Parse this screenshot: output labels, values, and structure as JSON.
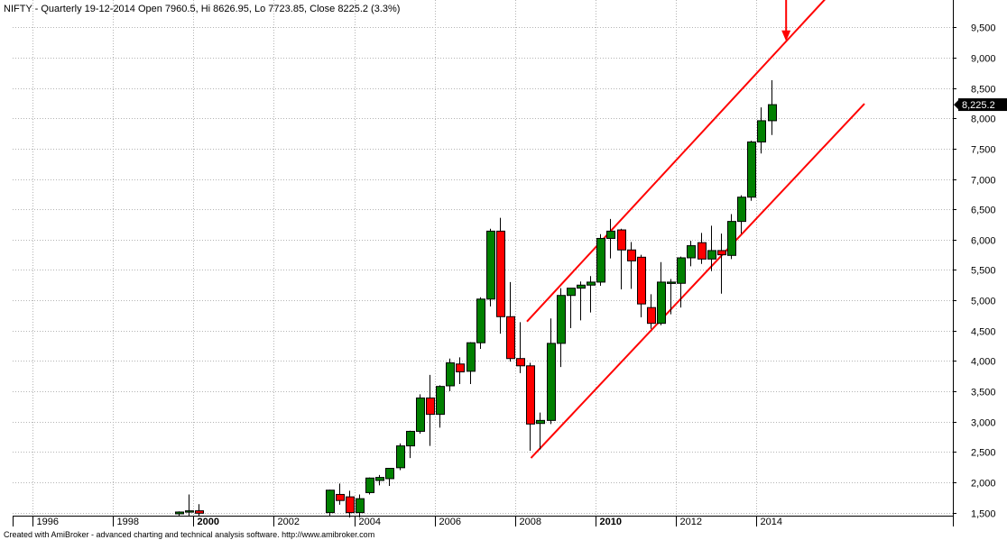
{
  "header": {
    "title": "NIFTY - Quarterly 19-12-2014 Open 7960.5, Hi 8626.95, Lo 7723.85, Close 8225.2 (3.3%)"
  },
  "footer": {
    "text": "Created with AmiBroker - advanced charting and technical analysis software. http://www.amibroker.com"
  },
  "colors": {
    "up": "#008000",
    "down": "#ff0000",
    "channel": "#ff0000",
    "grid": "#b4b4b4",
    "badge": "#000000"
  },
  "chart_data": {
    "type": "candlestick",
    "title": "NIFTY - Quarterly 19-12-2014 Open 7960.5, Hi 8626.95, Lo 7723.85, Close 8225.2 (3.3%)",
    "ylim": [
      1450,
      9950
    ],
    "y_ticks": [
      "1,500",
      "2,000",
      "2,500",
      "3,000",
      "3,500",
      "4,000",
      "4,500",
      "5,000",
      "5,500",
      "6,000",
      "6,500",
      "7,000",
      "7,500",
      "8,000",
      "8,500",
      "9,000",
      "9,500"
    ],
    "y_tick_values": [
      1500,
      2000,
      2500,
      3000,
      3500,
      4000,
      4500,
      5000,
      5500,
      6000,
      6500,
      7000,
      7500,
      8000,
      8500,
      9000,
      9500
    ],
    "xlim": [
      1995.5,
      2018.9
    ],
    "x_ticks": [
      {
        "label": "1996",
        "year": 1996,
        "bold": false
      },
      {
        "label": "1998",
        "year": 1998,
        "bold": false
      },
      {
        "label": "2000",
        "year": 2000,
        "bold": true
      },
      {
        "label": "2002",
        "year": 2002,
        "bold": false
      },
      {
        "label": "2004",
        "year": 2004,
        "bold": false
      },
      {
        "label": "2006",
        "year": 2006,
        "bold": false
      },
      {
        "label": "2008",
        "year": 2008,
        "bold": false
      },
      {
        "label": "2010",
        "year": 2010,
        "bold": true
      },
      {
        "label": "2012",
        "year": 2012,
        "bold": false
      },
      {
        "label": "2014",
        "year": 2014,
        "bold": false
      }
    ],
    "last_price_label": "8,225.2",
    "last_price": 8225.2,
    "candles": [
      {
        "t": 1999.625,
        "o": 1480,
        "h": 1520,
        "l": 1440,
        "c": 1510
      },
      {
        "t": 1999.875,
        "o": 1510,
        "h": 1800,
        "l": 1450,
        "c": 1530
      },
      {
        "t": 2000.125,
        "o": 1530,
        "h": 1640,
        "l": 1450,
        "c": 1490
      },
      {
        "t": 2003.375,
        "o": 1500,
        "h": 1880,
        "l": 1450,
        "c": 1870
      },
      {
        "t": 2003.625,
        "o": 1800,
        "h": 1980,
        "l": 1630,
        "c": 1700
      },
      {
        "t": 2003.875,
        "o": 1760,
        "h": 1860,
        "l": 1420,
        "c": 1500
      },
      {
        "t": 2004.125,
        "o": 1500,
        "h": 1800,
        "l": 1420,
        "c": 1730
      },
      {
        "t": 2004.375,
        "o": 1830,
        "h": 2080,
        "l": 1800,
        "c": 2070
      },
      {
        "t": 2004.625,
        "o": 2030,
        "h": 2120,
        "l": 1950,
        "c": 2080
      },
      {
        "t": 2004.875,
        "o": 2060,
        "h": 2220,
        "l": 1940,
        "c": 2230
      },
      {
        "t": 2005.125,
        "o": 2240,
        "h": 2640,
        "l": 2200,
        "c": 2600
      },
      {
        "t": 2005.375,
        "o": 2600,
        "h": 2850,
        "l": 2400,
        "c": 2840
      },
      {
        "t": 2005.625,
        "o": 2840,
        "h": 3450,
        "l": 2800,
        "c": 3390
      },
      {
        "t": 2005.875,
        "o": 3390,
        "h": 3770,
        "l": 2600,
        "c": 3120
      },
      {
        "t": 2006.125,
        "o": 3120,
        "h": 3600,
        "l": 2900,
        "c": 3580
      },
      {
        "t": 2006.375,
        "o": 3590,
        "h": 4040,
        "l": 3500,
        "c": 3970
      },
      {
        "t": 2006.625,
        "o": 3950,
        "h": 4060,
        "l": 3620,
        "c": 3820
      },
      {
        "t": 2006.875,
        "o": 3830,
        "h": 4310,
        "l": 3620,
        "c": 4300
      },
      {
        "t": 2007.125,
        "o": 4300,
        "h": 5050,
        "l": 4200,
        "c": 5020
      },
      {
        "t": 2007.375,
        "o": 5020,
        "h": 6180,
        "l": 4900,
        "c": 6140
      },
      {
        "t": 2007.625,
        "o": 6140,
        "h": 6360,
        "l": 4450,
        "c": 4730
      },
      {
        "t": 2007.875,
        "o": 4730,
        "h": 5300,
        "l": 3990,
        "c": 4040
      },
      {
        "t": 2008.125,
        "o": 4040,
        "h": 4640,
        "l": 3800,
        "c": 3920
      },
      {
        "t": 2008.375,
        "o": 3920,
        "h": 3970,
        "l": 2520,
        "c": 2960
      },
      {
        "t": 2008.625,
        "o": 2970,
        "h": 3150,
        "l": 2540,
        "c": 3020
      },
      {
        "t": 2008.875,
        "o": 3020,
        "h": 4700,
        "l": 2960,
        "c": 4290
      },
      {
        "t": 2009.125,
        "o": 4290,
        "h": 5200,
        "l": 3900,
        "c": 5080
      },
      {
        "t": 2009.375,
        "o": 5080,
        "h": 5180,
        "l": 4540,
        "c": 5200
      },
      {
        "t": 2009.625,
        "o": 5200,
        "h": 5310,
        "l": 4670,
        "c": 5250
      },
      {
        "t": 2009.875,
        "o": 5250,
        "h": 5400,
        "l": 4800,
        "c": 5300
      },
      {
        "t": 2010.125,
        "o": 5300,
        "h": 6090,
        "l": 5240,
        "c": 6020
      },
      {
        "t": 2010.375,
        "o": 6020,
        "h": 6340,
        "l": 5690,
        "c": 6140
      },
      {
        "t": 2010.625,
        "o": 6160,
        "h": 6180,
        "l": 5180,
        "c": 5830
      },
      {
        "t": 2010.875,
        "o": 5830,
        "h": 5960,
        "l": 5190,
        "c": 5650
      },
      {
        "t": 2011.125,
        "o": 5710,
        "h": 5750,
        "l": 4720,
        "c": 4940
      },
      {
        "t": 2011.375,
        "o": 4880,
        "h": 5100,
        "l": 4530,
        "c": 4620
      },
      {
        "t": 2011.625,
        "o": 4620,
        "h": 5630,
        "l": 4590,
        "c": 5300
      },
      {
        "t": 2011.875,
        "o": 5280,
        "h": 5350,
        "l": 4770,
        "c": 5300
      },
      {
        "t": 2012.125,
        "o": 5280,
        "h": 5720,
        "l": 4880,
        "c": 5700
      },
      {
        "t": 2012.375,
        "o": 5700,
        "h": 5980,
        "l": 5560,
        "c": 5900
      },
      {
        "t": 2012.625,
        "o": 5950,
        "h": 6110,
        "l": 5600,
        "c": 5680
      },
      {
        "t": 2012.875,
        "o": 5680,
        "h": 6230,
        "l": 5480,
        "c": 5820
      },
      {
        "t": 2013.125,
        "o": 5820,
        "h": 6100,
        "l": 5110,
        "c": 5750
      },
      {
        "t": 2013.375,
        "o": 5740,
        "h": 6420,
        "l": 5680,
        "c": 6300
      },
      {
        "t": 2013.625,
        "o": 6300,
        "h": 6730,
        "l": 6100,
        "c": 6700
      },
      {
        "t": 2013.875,
        "o": 6700,
        "h": 7630,
        "l": 6640,
        "c": 7610
      },
      {
        "t": 2014.125,
        "o": 7610,
        "h": 8180,
        "l": 7420,
        "c": 7960
      },
      {
        "t": 2014.375,
        "o": 7960,
        "h": 8627,
        "l": 7724,
        "c": 8225
      }
    ],
    "channel_lines": [
      {
        "name": "upper",
        "x1": 2008.3,
        "y1": 4650,
        "x2": 2015.8,
        "y2": 10020
      },
      {
        "name": "lower",
        "x1": 2008.4,
        "y1": 2400,
        "x2": 2016.7,
        "y2": 8240
      }
    ],
    "arrow": {
      "x": 2014.75,
      "y_top": 10100,
      "y_tip": 9270
    }
  }
}
